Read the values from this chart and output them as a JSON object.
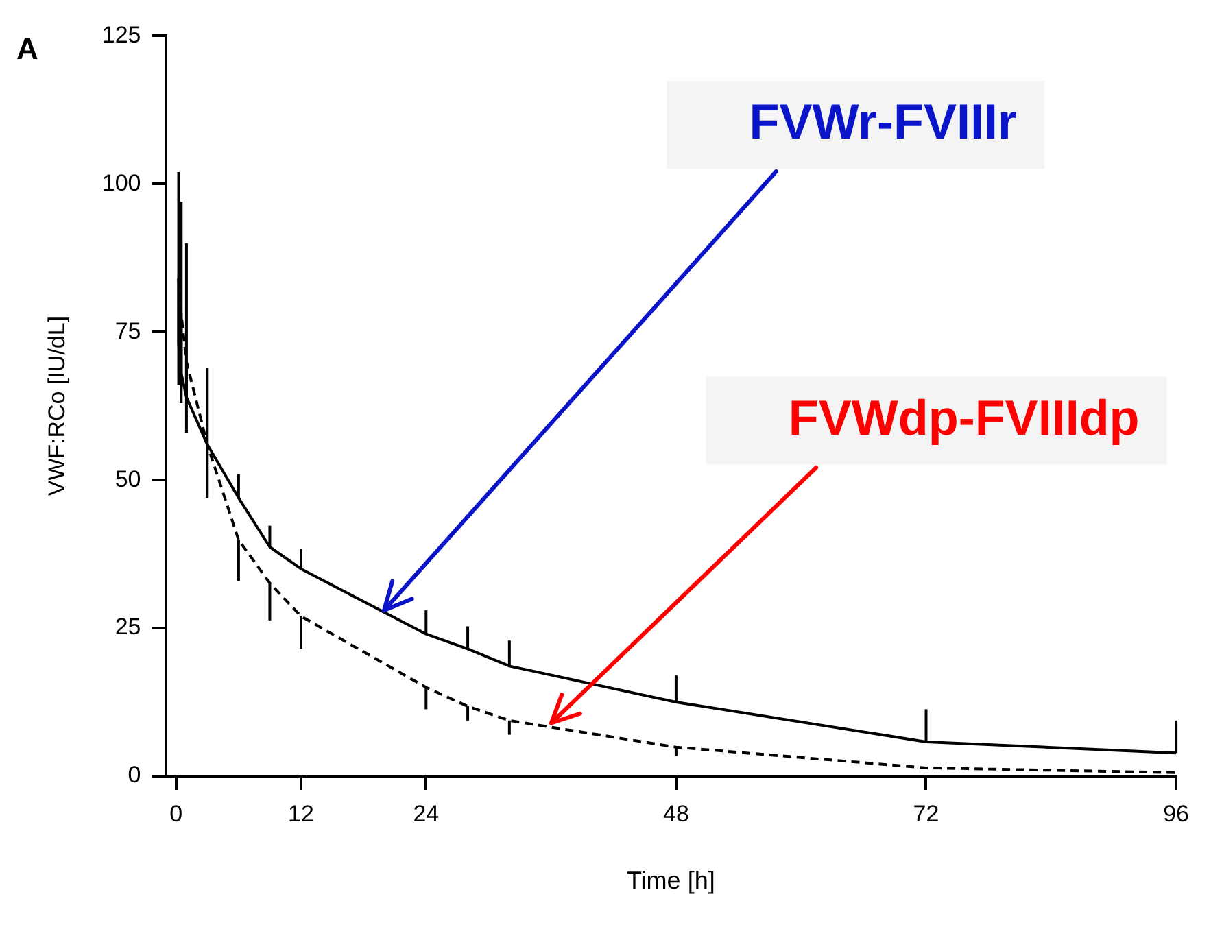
{
  "chart_data": {
    "type": "line",
    "xlabel": "Time [h]",
    "ylabel": "VWF:RCo [IU/dL]",
    "xlim": [
      -1,
      96
    ],
    "xticks": [
      0,
      12,
      24,
      48,
      72,
      96
    ],
    "ylim": [
      0,
      125
    ],
    "yticks": [
      0,
      25,
      50,
      75,
      100,
      125
    ],
    "grid": false,
    "legend": false,
    "marker": "none",
    "series": [
      {
        "color": "#000000",
        "line_style": "solid",
        "x": [
          0.25,
          0.5,
          1,
          3,
          6,
          9,
          12,
          24,
          28,
          32,
          48,
          72,
          96
        ],
        "values": [
          73,
          68,
          64,
          56,
          47,
          38.7,
          35,
          24,
          21.5,
          18.6,
          12.5,
          5.8,
          3.9
        ],
        "errors": [
          [
            73,
            102
          ],
          [
            68,
            97
          ],
          [
            64,
            90
          ],
          [
            56,
            69
          ],
          [
            47,
            51
          ],
          [
            38.7,
            42.3
          ],
          [
            35,
            38.4
          ],
          [
            24,
            28
          ],
          [
            21.5,
            25.3
          ],
          [
            18.6,
            22.9
          ],
          [
            12.5,
            17
          ],
          [
            5.8,
            11.3
          ],
          [
            3.9,
            9.4
          ]
        ]
      },
      {
        "color": "#000000",
        "line_style": "dashed",
        "x": [
          0.25,
          0.5,
          1,
          3,
          6,
          9,
          12,
          24,
          28,
          32,
          48,
          72,
          96
        ],
        "values": [
          84,
          78,
          70,
          56,
          39.9,
          32.6,
          27,
          15,
          11.8,
          9.4,
          4.9,
          1.4,
          0.6
        ],
        "errors": [
          [
            66,
            84
          ],
          [
            63,
            78
          ],
          [
            58,
            70
          ],
          [
            47,
            56
          ],
          [
            33,
            39.9
          ],
          [
            26.3,
            32.6
          ],
          [
            21.5,
            27
          ],
          [
            11.3,
            15
          ],
          [
            9.4,
            11.8
          ],
          [
            7,
            9.4
          ],
          [
            3.4,
            4.9
          ],
          null,
          null
        ]
      }
    ],
    "annotations": [
      "A",
      {
        "text": "FVWr-FVIIIr",
        "x": 20,
        "y": 28
      },
      {
        "text": "FVWdp-FVIIIdp",
        "x": 36,
        "y": 9
      }
    ]
  }
}
